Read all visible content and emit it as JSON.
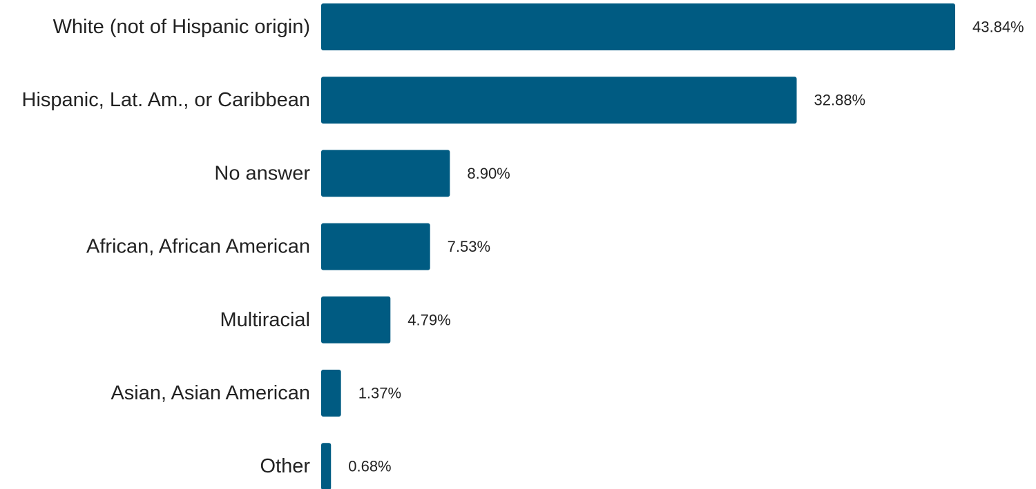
{
  "chart_data": {
    "type": "bar",
    "orientation": "horizontal",
    "categories": [
      "White (not of Hispanic origin)",
      "Hispanic, Lat. Am., or Caribbean",
      "No answer",
      "African, African American",
      "Multiracial",
      "Asian, Asian American",
      "Other"
    ],
    "values": [
      43.84,
      32.88,
      8.9,
      7.53,
      4.79,
      1.37,
      0.68
    ],
    "value_labels": [
      "43.84%",
      "32.88%",
      "8.90%",
      "7.53%",
      "4.79%",
      "1.37%",
      "0.68%"
    ],
    "bar_color": "#005b82",
    "grid": false,
    "legend": "none"
  }
}
